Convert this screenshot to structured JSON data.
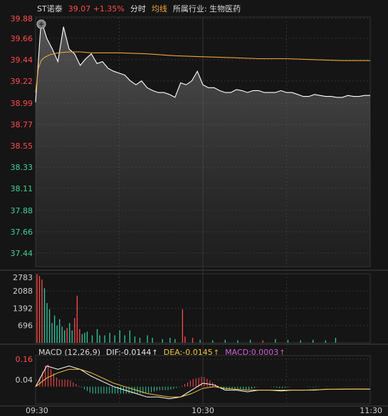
{
  "header": {
    "name": "ST诺泰",
    "price": "39.07",
    "change": "+1.35%",
    "mode_tab": "分时",
    "avg_tab": "均线",
    "industry": "所属行业: 生物医药"
  },
  "colors": {
    "background": "#151515",
    "up": "#ff4a4a",
    "down": "#33c9a0",
    "price_line": "#ffffff",
    "avg_line": "#f0a43a",
    "dea_line": "#f0c33a",
    "macd_label": "#d45cd4",
    "grid": "#333333"
  },
  "chart_data": {
    "type": "line",
    "price_axis": {
      "labels": [
        "39.88",
        "39.66",
        "39.44",
        "39.22",
        "38.99",
        "38.77",
        "38.55",
        "38.33",
        "38.11",
        "37.88",
        "37.66",
        "37.44"
      ],
      "range": [
        37.3,
        39.88
      ]
    },
    "time_axis": {
      "labels": [
        "09:30",
        "10:30",
        "11:30"
      ]
    },
    "price_series": {
      "times": [
        0,
        2,
        4,
        6,
        8,
        10,
        12,
        14,
        16,
        18,
        20,
        22,
        24,
        26,
        28,
        30,
        32,
        34,
        36,
        38,
        40,
        42,
        44,
        46,
        48,
        50,
        52,
        54,
        56,
        58,
        60,
        62,
        64,
        66,
        68,
        70,
        72,
        74,
        76,
        78,
        80,
        82,
        84,
        86,
        88,
        90,
        92,
        94,
        96,
        98,
        100,
        102,
        104,
        106,
        108,
        110,
        112,
        114,
        116,
        118,
        120
      ],
      "values": [
        39.0,
        39.85,
        39.66,
        39.55,
        39.42,
        39.78,
        39.55,
        39.5,
        39.38,
        39.45,
        39.5,
        39.4,
        39.42,
        39.35,
        39.32,
        39.3,
        39.28,
        39.22,
        39.18,
        39.22,
        39.15,
        39.12,
        39.1,
        39.1,
        39.08,
        39.05,
        39.2,
        39.18,
        39.22,
        39.32,
        39.18,
        39.15,
        39.15,
        39.12,
        39.1,
        39.1,
        39.13,
        39.12,
        39.1,
        39.12,
        39.12,
        39.1,
        39.1,
        39.1,
        39.12,
        39.1,
        39.1,
        39.08,
        39.06,
        39.06,
        39.08,
        39.07,
        39.06,
        39.06,
        39.05,
        39.05,
        39.07,
        39.06,
        39.06,
        39.07,
        39.07
      ]
    },
    "avg_series": {
      "times": [
        0,
        1,
        2,
        3,
        5,
        8,
        12,
        16,
        20,
        30,
        40,
        50,
        60,
        70,
        80,
        90,
        100,
        110,
        120
      ],
      "values": [
        39.1,
        39.35,
        39.43,
        39.46,
        39.49,
        39.51,
        39.52,
        39.52,
        39.51,
        39.51,
        39.5,
        39.48,
        39.47,
        39.46,
        39.45,
        39.45,
        39.44,
        39.43,
        39.43
      ]
    },
    "volume": {
      "axis_labels": [
        "2783",
        "2088",
        "1392",
        "696"
      ],
      "max": 2783,
      "bars": [
        [
          0,
          2760,
          "up"
        ],
        [
          1,
          2700,
          "up"
        ],
        [
          2,
          2550,
          "up"
        ],
        [
          3,
          2200,
          "down"
        ],
        [
          4,
          1600,
          "down"
        ],
        [
          5,
          1350,
          "down"
        ],
        [
          6,
          800,
          "down"
        ],
        [
          7,
          1100,
          "down"
        ],
        [
          8,
          700,
          "down"
        ],
        [
          9,
          950,
          "down"
        ],
        [
          10,
          650,
          "down"
        ],
        [
          11,
          500,
          "down"
        ],
        [
          12,
          600,
          "up"
        ],
        [
          13,
          800,
          "down"
        ],
        [
          14,
          500,
          "down"
        ],
        [
          15,
          1000,
          "up"
        ],
        [
          16,
          1900,
          "up"
        ],
        [
          17,
          550,
          "up"
        ],
        [
          18,
          350,
          "down"
        ],
        [
          19,
          400,
          "down"
        ],
        [
          20,
          450,
          "down"
        ],
        [
          22,
          300,
          "down"
        ],
        [
          24,
          550,
          "down"
        ],
        [
          25,
          300,
          "down"
        ],
        [
          27,
          300,
          "down"
        ],
        [
          29,
          400,
          "down"
        ],
        [
          31,
          300,
          "down"
        ],
        [
          33,
          500,
          "down"
        ],
        [
          35,
          300,
          "down"
        ],
        [
          37,
          500,
          "down"
        ],
        [
          39,
          250,
          "down"
        ],
        [
          41,
          200,
          "down"
        ],
        [
          44,
          300,
          "down"
        ],
        [
          46,
          200,
          "down"
        ],
        [
          50,
          150,
          "down"
        ],
        [
          53,
          200,
          "down"
        ],
        [
          55,
          150,
          "down"
        ],
        [
          58,
          1350,
          "up"
        ],
        [
          59,
          250,
          "up"
        ],
        [
          62,
          200,
          "up"
        ],
        [
          65,
          120,
          "down"
        ],
        [
          70,
          100,
          "down"
        ],
        [
          75,
          120,
          "down"
        ],
        [
          80,
          100,
          "down"
        ],
        [
          85,
          120,
          "down"
        ],
        [
          90,
          100,
          "up"
        ],
        [
          95,
          150,
          "down"
        ],
        [
          100,
          120,
          "down"
        ],
        [
          105,
          100,
          "down"
        ],
        [
          110,
          120,
          "down"
        ],
        [
          115,
          100,
          "down"
        ],
        [
          119,
          200,
          "down"
        ]
      ]
    },
    "macd": {
      "title": "MACD (12,26,9)",
      "dif_label": "DIF:-0.0144",
      "dea_label": "DEA:-0.0145",
      "macd_label": "MACD:0.0003",
      "axis_labels": [
        "0.16",
        "0.04"
      ],
      "range": [
        -0.1,
        0.18
      ],
      "dif": {
        "times": [
          0,
          4,
          8,
          12,
          16,
          20,
          24,
          28,
          32,
          36,
          40,
          44,
          48,
          52,
          56,
          60,
          64,
          68,
          72,
          76,
          80,
          84,
          88,
          92,
          96,
          100,
          104,
          108,
          112,
          116,
          120
        ],
        "values": [
          0.0,
          0.12,
          0.1,
          0.12,
          0.1,
          0.06,
          0.03,
          0.0,
          -0.02,
          -0.04,
          -0.06,
          -0.06,
          -0.07,
          -0.06,
          -0.02,
          0.02,
          0.01,
          -0.02,
          -0.02,
          -0.03,
          -0.02,
          -0.02,
          -0.025,
          -0.02,
          -0.02,
          -0.02,
          -0.015,
          -0.015,
          -0.014,
          -0.014,
          -0.0144
        ]
      },
      "dea": {
        "times": [
          0,
          4,
          8,
          12,
          16,
          20,
          24,
          28,
          32,
          36,
          40,
          44,
          48,
          52,
          56,
          60,
          64,
          68,
          72,
          76,
          80,
          84,
          88,
          92,
          96,
          100,
          104,
          108,
          112,
          116,
          120
        ],
        "values": [
          0.0,
          0.05,
          0.08,
          0.1,
          0.1,
          0.08,
          0.05,
          0.02,
          0.0,
          -0.02,
          -0.04,
          -0.05,
          -0.06,
          -0.06,
          -0.04,
          -0.01,
          0.0,
          -0.01,
          -0.015,
          -0.02,
          -0.02,
          -0.02,
          -0.02,
          -0.02,
          -0.02,
          -0.018,
          -0.016,
          -0.015,
          -0.0145,
          -0.0145,
          -0.0145
        ]
      }
    }
  }
}
